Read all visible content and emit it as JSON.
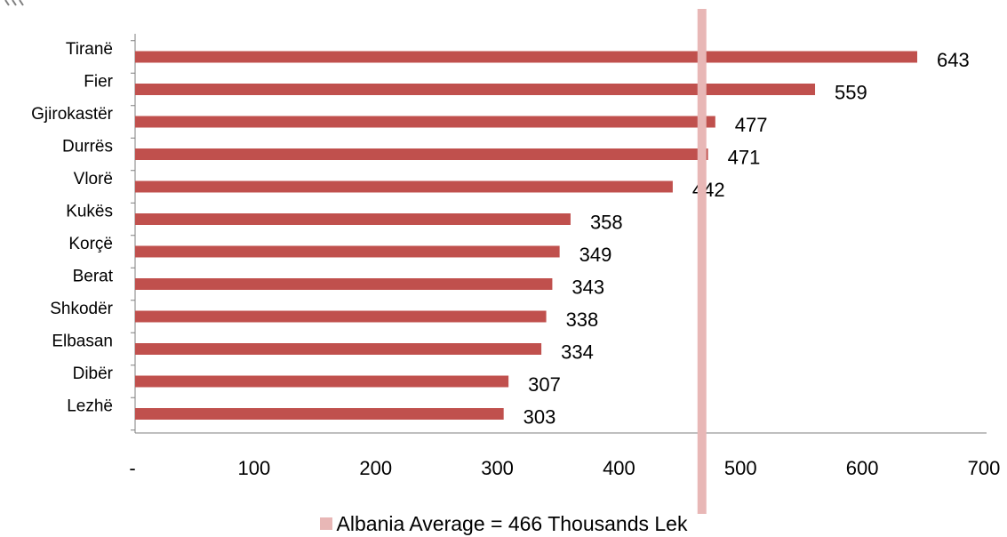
{
  "colors": {
    "bar": "#c0504d",
    "average_line": "#e8b7b6",
    "axis": "#7f7f7f",
    "corner_mark": "#7f7f7f"
  },
  "chart_data": {
    "type": "bar",
    "orientation": "horizontal",
    "categories": [
      "Tiranë",
      "Fier",
      "Gjirokastër",
      "Durrës",
      "Vlorë",
      "Kukës",
      "Korçë",
      "Berat",
      "Shkodër",
      "Elbasan",
      "Dibër",
      "Lezhë"
    ],
    "values": [
      643,
      559,
      477,
      471,
      442,
      358,
      349,
      343,
      338,
      334,
      307,
      303
    ],
    "xlim": [
      0,
      700
    ],
    "x_ticks": [
      0,
      100,
      200,
      300,
      400,
      500,
      600,
      700
    ],
    "x_tick_labels": [
      "-",
      "100",
      "200",
      "300",
      "400",
      "500",
      "600",
      "700"
    ],
    "reference_line": {
      "value": 466,
      "label": "Albania Average = 466 Thousands Lek"
    },
    "legend": {
      "position": "bottom",
      "entries": [
        "Albania Average = 466 Thousands Lek"
      ]
    },
    "grid": false
  }
}
